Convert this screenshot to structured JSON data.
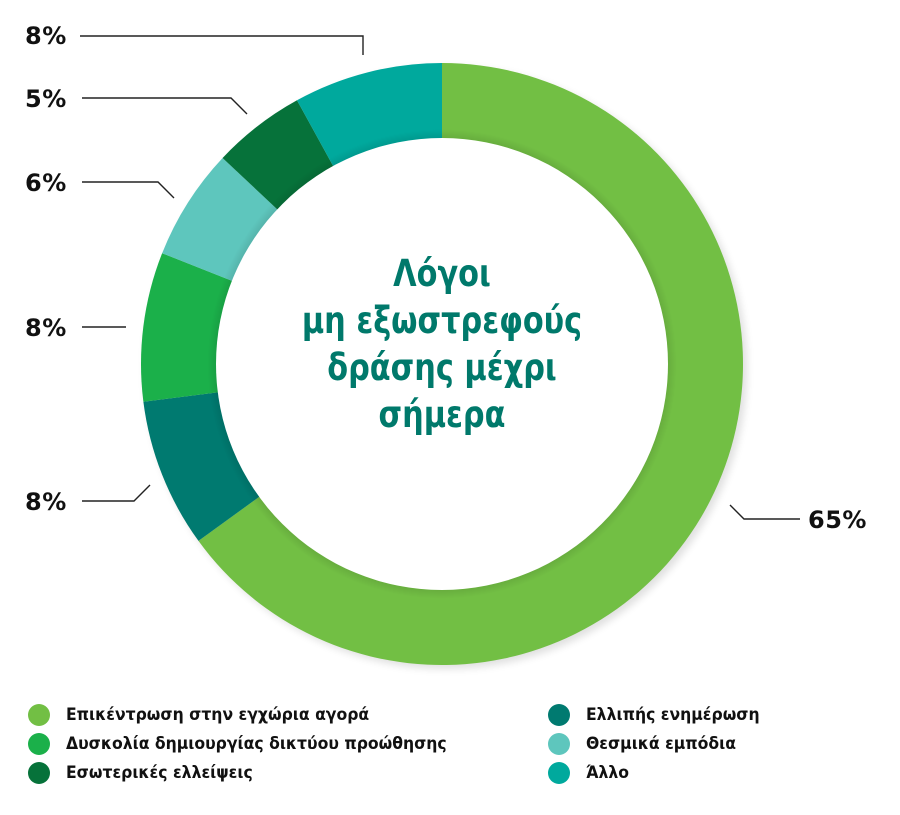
{
  "chart_data": {
    "type": "pie",
    "variant": "donut",
    "title": "Λόγοι μη εξωστρεφούς δράσης μέχρι σήμερα",
    "title_lines": [
      "Λόγοι",
      "μη εξωστρεφούς",
      "δράσης μέχρι",
      "σήμερα"
    ],
    "categories": [
      "Επικέντρωση στην εγχώρια αγορά",
      "Ελλιπής ενημέρωση",
      "Δυσκολία δημιουργίας δικτύου προώθησης",
      "Θεσμικά εμπόδια",
      "Εσωτερικές ελλείψεις",
      "Άλλο"
    ],
    "values": [
      65,
      8,
      8,
      6,
      5,
      8
    ],
    "labels": [
      "65%",
      "8%",
      "8%",
      "6%",
      "5%",
      "8%"
    ],
    "colors": [
      "#72bf44",
      "#007a70",
      "#1bb04a",
      "#5ec6bd",
      "#06723a",
      "#00a99d"
    ],
    "legend_position": "bottom",
    "start_angle_deg": 0,
    "direction": "clockwise"
  },
  "labels": {
    "l_65": "65%",
    "l_8_teal": "8%",
    "l_5": "5%",
    "l_6": "6%",
    "l_8_green": "8%",
    "l_8_darkteal": "8%"
  },
  "legend": {
    "left": [
      {
        "label": "Επικέντρωση στην εγχώρια αγορά",
        "color": "#72bf44"
      },
      {
        "label": "Δυσκολία δημιουργίας δικτύου προώθησης",
        "color": "#1bb04a"
      },
      {
        "label": "Εσωτερικές ελλείψεις",
        "color": "#06723a"
      }
    ],
    "right": [
      {
        "label": "Ελλιπής ενημέρωση",
        "color": "#007a70"
      },
      {
        "label": "Θεσμικά εμπόδια",
        "color": "#5ec6bd"
      },
      {
        "label": "Άλλο",
        "color": "#00a99d"
      }
    ]
  }
}
